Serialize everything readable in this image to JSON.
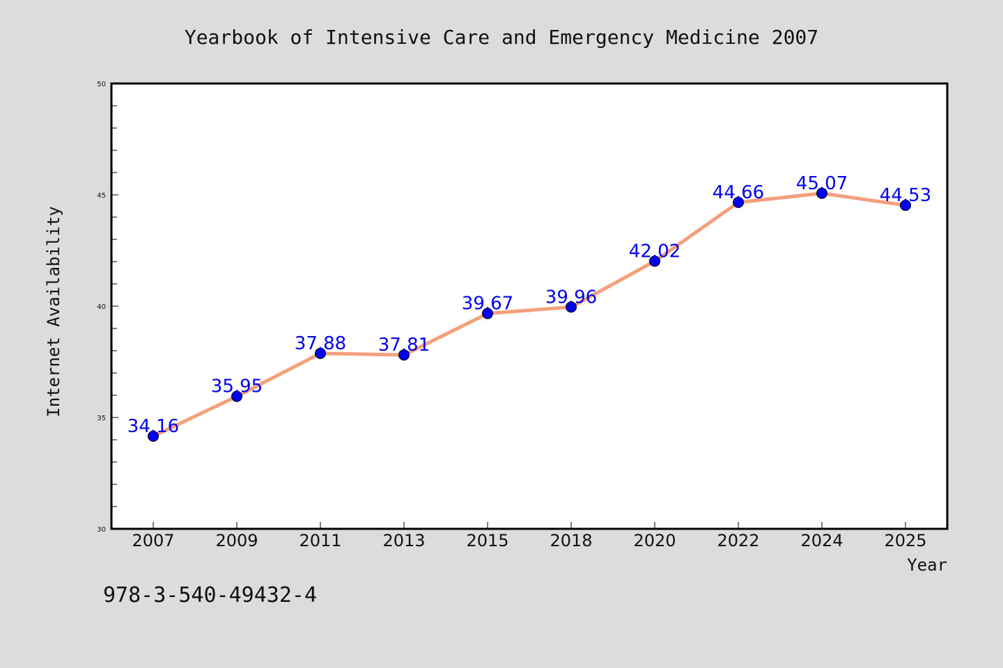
{
  "footnote": "978-3-540-49432-4",
  "colors": {
    "background": "#dcdcdc",
    "plot_background": "#ffffff",
    "line": "#f4a07c",
    "marker": "#0000ee",
    "label": "#0000ee"
  },
  "chart_data": {
    "type": "line",
    "title": "Yearbook of Intensive Care and Emergency Medicine 2007",
    "xlabel": "Year",
    "ylabel": "Internet Availability",
    "ylim": [
      30,
      50
    ],
    "yticks": [
      30,
      35,
      40,
      45,
      50
    ],
    "grid": false,
    "categories": [
      "2007",
      "2009",
      "2011",
      "2013",
      "2015",
      "2018",
      "2020",
      "2022",
      "2024",
      "2025"
    ],
    "values": [
      34.16,
      35.95,
      37.88,
      37.81,
      39.67,
      39.96,
      42.02,
      44.66,
      45.07,
      44.53
    ],
    "data_labels": [
      "34.16",
      "35.95",
      "37.88",
      "37.81",
      "39.67",
      "39.96",
      "42.02",
      "44.66",
      "45.07",
      "44.53"
    ]
  }
}
